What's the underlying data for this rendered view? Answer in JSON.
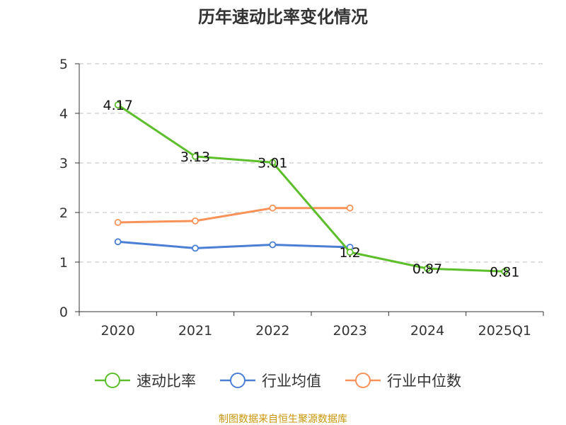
{
  "chart_data": {
    "type": "line",
    "title": "历年速动比率变化情况",
    "categories": [
      "2020",
      "2021",
      "2022",
      "2023",
      "2024",
      "2025Q1"
    ],
    "ylim": [
      0,
      5
    ],
    "yticks": [
      0,
      1,
      2,
      3,
      4,
      5
    ],
    "grid": true,
    "legend_position": "bottom",
    "series": [
      {
        "name": "速动比率",
        "color": "#5cbe2a",
        "values": [
          4.17,
          3.13,
          3.01,
          1.2,
          0.87,
          0.81
        ],
        "labels": [
          "4.17",
          "3.13",
          "3.01",
          "1.2",
          "0.87",
          "0.81"
        ]
      },
      {
        "name": "行业均值",
        "color": "#4a7fd4",
        "values": [
          1.41,
          1.28,
          1.35,
          1.3,
          null,
          null
        ]
      },
      {
        "name": "行业中位数",
        "color": "#f79259",
        "values": [
          1.8,
          1.83,
          2.09,
          2.09,
          null,
          null
        ]
      }
    ]
  },
  "source": "制图数据来自恒生聚源数据库"
}
